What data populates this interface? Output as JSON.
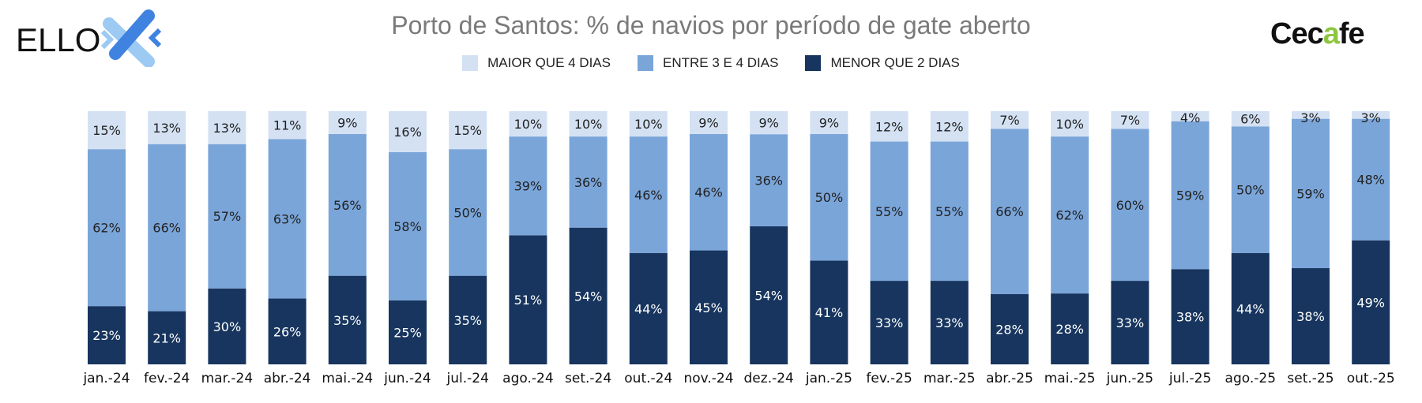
{
  "logos": {
    "left": "ELLO",
    "right": "Cecafe"
  },
  "chart_data": {
    "type": "bar",
    "stacked": true,
    "title": "Porto de Santos: % de navios por período de gate aberto",
    "xlabel": "",
    "ylabel": "",
    "ylim": [
      0,
      100
    ],
    "legend_position": "top",
    "categories": [
      "jan.-24",
      "fev.-24",
      "mar.-24",
      "abr.-24",
      "mai.-24",
      "jun.-24",
      "jul.-24",
      "ago.-24",
      "set.-24",
      "out.-24",
      "nov.-24",
      "dez.-24",
      "jan.-25",
      "fev.-25",
      "mar.-25",
      "abr.-25",
      "mai.-25",
      "jun.-25",
      "jul.-25",
      "ago.-25",
      "set.-25",
      "out.-25"
    ],
    "series": [
      {
        "name": "MENOR QUE 2 DIAS",
        "color": "#17355e",
        "label_color": "#ffffff",
        "values": [
          23,
          21,
          30,
          26,
          35,
          25,
          35,
          51,
          54,
          44,
          45,
          54,
          41,
          33,
          33,
          28,
          28,
          33,
          38,
          44,
          38,
          49
        ]
      },
      {
        "name": "ENTRE 3 E 4 DIAS",
        "color": "#7aa5d9",
        "label_color": "#222222",
        "values": [
          62,
          66,
          57,
          63,
          56,
          58,
          50,
          39,
          36,
          46,
          46,
          36,
          50,
          55,
          55,
          66,
          62,
          60,
          59,
          50,
          59,
          48
        ]
      },
      {
        "name": "MAIOR QUE 4 DIAS",
        "color": "#d3e1f3",
        "label_color": "#222222",
        "values": [
          15,
          13,
          13,
          11,
          9,
          16,
          15,
          10,
          10,
          10,
          9,
          9,
          9,
          12,
          12,
          7,
          10,
          7,
          4,
          6,
          3,
          3
        ]
      }
    ]
  }
}
